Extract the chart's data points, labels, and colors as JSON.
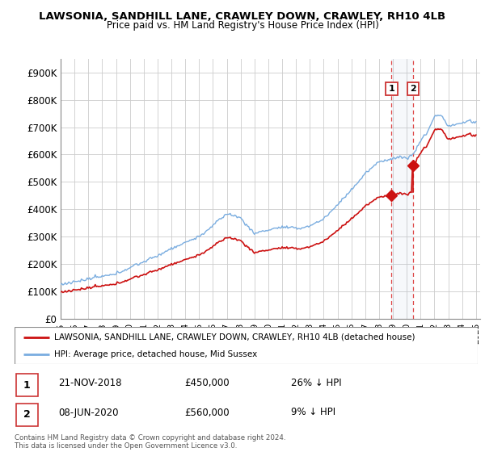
{
  "title": "LAWSONIA, SANDHILL LANE, CRAWLEY DOWN, CRAWLEY, RH10 4LB",
  "subtitle": "Price paid vs. HM Land Registry's House Price Index (HPI)",
  "hpi_color": "#7aade0",
  "price_color": "#cc1111",
  "sale1_date": 2018.9,
  "sale1_price": 450000,
  "sale1_label": "1",
  "sale2_date": 2020.45,
  "sale2_price": 560000,
  "sale2_label": "2",
  "ylim": [
    0,
    950000
  ],
  "yticks": [
    0,
    100000,
    200000,
    300000,
    400000,
    500000,
    600000,
    700000,
    800000,
    900000
  ],
  "ytick_labels": [
    "£0",
    "£100K",
    "£200K",
    "£300K",
    "£400K",
    "£500K",
    "£600K",
    "£700K",
    "£800K",
    "£900K"
  ],
  "legend_entry1": "LAWSONIA, SANDHILL LANE, CRAWLEY DOWN, CRAWLEY, RH10 4LB (detached house)",
  "legend_entry2": "HPI: Average price, detached house, Mid Sussex",
  "note1_label": "1",
  "note1_date": "21-NOV-2018",
  "note1_price": "£450,000",
  "note1_pct": "26% ↓ HPI",
  "note2_label": "2",
  "note2_date": "08-JUN-2020",
  "note2_price": "£560,000",
  "note2_pct": "9% ↓ HPI",
  "footer": "Contains HM Land Registry data © Crown copyright and database right 2024.\nThis data is licensed under the Open Government Licence v3.0."
}
